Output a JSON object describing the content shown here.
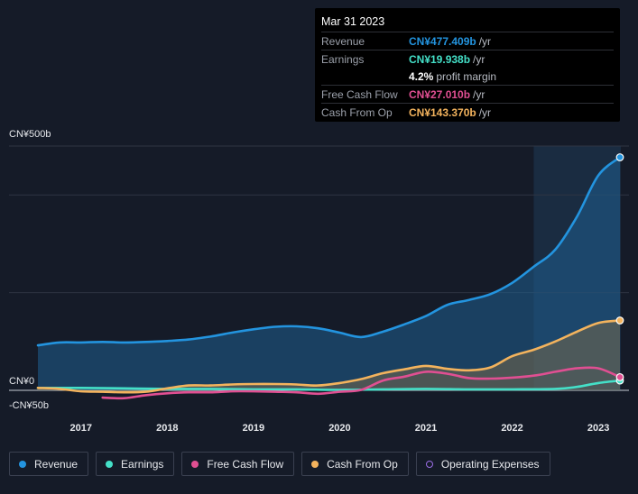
{
  "tooltip": {
    "date": "Mar 31 2023",
    "rows": [
      {
        "key": "Revenue",
        "value": "CN¥477.409b",
        "unit": "/yr",
        "color": "#2394df"
      },
      {
        "key": "Earnings",
        "value": "CN¥19.938b",
        "unit": "/yr",
        "color": "#44e0c8"
      },
      {
        "key": "",
        "value": "4.2%",
        "unit": "profit margin",
        "color": "#ffffff"
      },
      {
        "key": "Free Cash Flow",
        "value": "CN¥27.010b",
        "unit": "/yr",
        "color": "#e04f92"
      },
      {
        "key": "Cash From Op",
        "value": "CN¥143.370b",
        "unit": "/yr",
        "color": "#f3b35d"
      }
    ]
  },
  "legend": [
    {
      "label": "Revenue",
      "color": "#2394df",
      "filled": true
    },
    {
      "label": "Earnings",
      "color": "#44e0c8",
      "filled": true
    },
    {
      "label": "Free Cash Flow",
      "color": "#e04f92",
      "filled": true
    },
    {
      "label": "Cash From Op",
      "color": "#f3b35d",
      "filled": true
    },
    {
      "label": "Operating Expenses",
      "color": "#9b6ee6",
      "filled": false
    }
  ],
  "chart_data": {
    "type": "area",
    "y_unit": "CN¥ billions",
    "ylim": [
      -50,
      500
    ],
    "y_ticks": [
      {
        "value": 500,
        "label": "CN¥500b"
      },
      {
        "value": 0,
        "label": "CN¥0"
      },
      {
        "value": -50,
        "label": "-CN¥50b"
      }
    ],
    "x_ticks": [
      "2017",
      "2018",
      "2019",
      "2020",
      "2021",
      "2022",
      "2023"
    ],
    "xlim": [
      2016.5,
      2023.5
    ],
    "highlight_range": [
      2022.25,
      2023.25
    ],
    "series": [
      {
        "name": "Revenue",
        "color": "#2394df",
        "fill": true,
        "x": [
          2016.5,
          2016.75,
          2017.0,
          2017.25,
          2017.5,
          2017.75,
          2018.0,
          2018.25,
          2018.5,
          2018.75,
          2019.0,
          2019.25,
          2019.5,
          2019.75,
          2020.0,
          2020.25,
          2020.5,
          2020.75,
          2021.0,
          2021.25,
          2021.5,
          2021.75,
          2022.0,
          2022.25,
          2022.5,
          2022.75,
          2023.0,
          2023.25
        ],
        "y": [
          92,
          98,
          98,
          99,
          98,
          99,
          101,
          104,
          110,
          118,
          125,
          130,
          131,
          127,
          118,
          109,
          120,
          135,
          152,
          175,
          185,
          197,
          220,
          253,
          288,
          355,
          440,
          477
        ]
      },
      {
        "name": "Earnings",
        "color": "#44e0c8",
        "fill": false,
        "x": [
          2016.5,
          2017.0,
          2017.5,
          2018.0,
          2018.5,
          2019.0,
          2019.5,
          2020.0,
          2020.5,
          2021.0,
          2021.5,
          2022.0,
          2022.5,
          2022.75,
          2023.0,
          2023.25
        ],
        "y": [
          5,
          5,
          4,
          3,
          3,
          2,
          2,
          1,
          2,
          3,
          2,
          2,
          3,
          7,
          15,
          20
        ]
      },
      {
        "name": "Free Cash Flow",
        "color": "#e04f92",
        "fill": false,
        "x": [
          2017.25,
          2017.5,
          2017.75,
          2018.0,
          2018.25,
          2018.5,
          2018.75,
          2019.0,
          2019.25,
          2019.5,
          2019.75,
          2020.0,
          2020.25,
          2020.5,
          2020.75,
          2021.0,
          2021.25,
          2021.5,
          2021.75,
          2022.0,
          2022.25,
          2022.5,
          2022.75,
          2023.0,
          2023.25
        ],
        "y": [
          -15,
          -16,
          -10,
          -6,
          -4,
          -4,
          -2,
          -2,
          -3,
          -4,
          -7,
          -3,
          1,
          20,
          28,
          38,
          34,
          25,
          24,
          26,
          30,
          38,
          45,
          45,
          27
        ]
      },
      {
        "name": "Cash From Op",
        "color": "#f3b35d",
        "fill": true,
        "x": [
          2016.5,
          2016.75,
          2017.0,
          2017.25,
          2017.5,
          2017.75,
          2018.0,
          2018.25,
          2018.5,
          2018.75,
          2019.0,
          2019.25,
          2019.5,
          2019.75,
          2020.0,
          2020.25,
          2020.5,
          2020.75,
          2021.0,
          2021.25,
          2021.5,
          2021.75,
          2022.0,
          2022.25,
          2022.5,
          2022.75,
          2023.0,
          2023.25
        ],
        "y": [
          5,
          3,
          -2,
          -3,
          -4,
          -3,
          4,
          10,
          10,
          12,
          13,
          13,
          12,
          10,
          15,
          23,
          35,
          43,
          50,
          44,
          41,
          47,
          70,
          83,
          100,
          120,
          138,
          143
        ]
      }
    ]
  }
}
